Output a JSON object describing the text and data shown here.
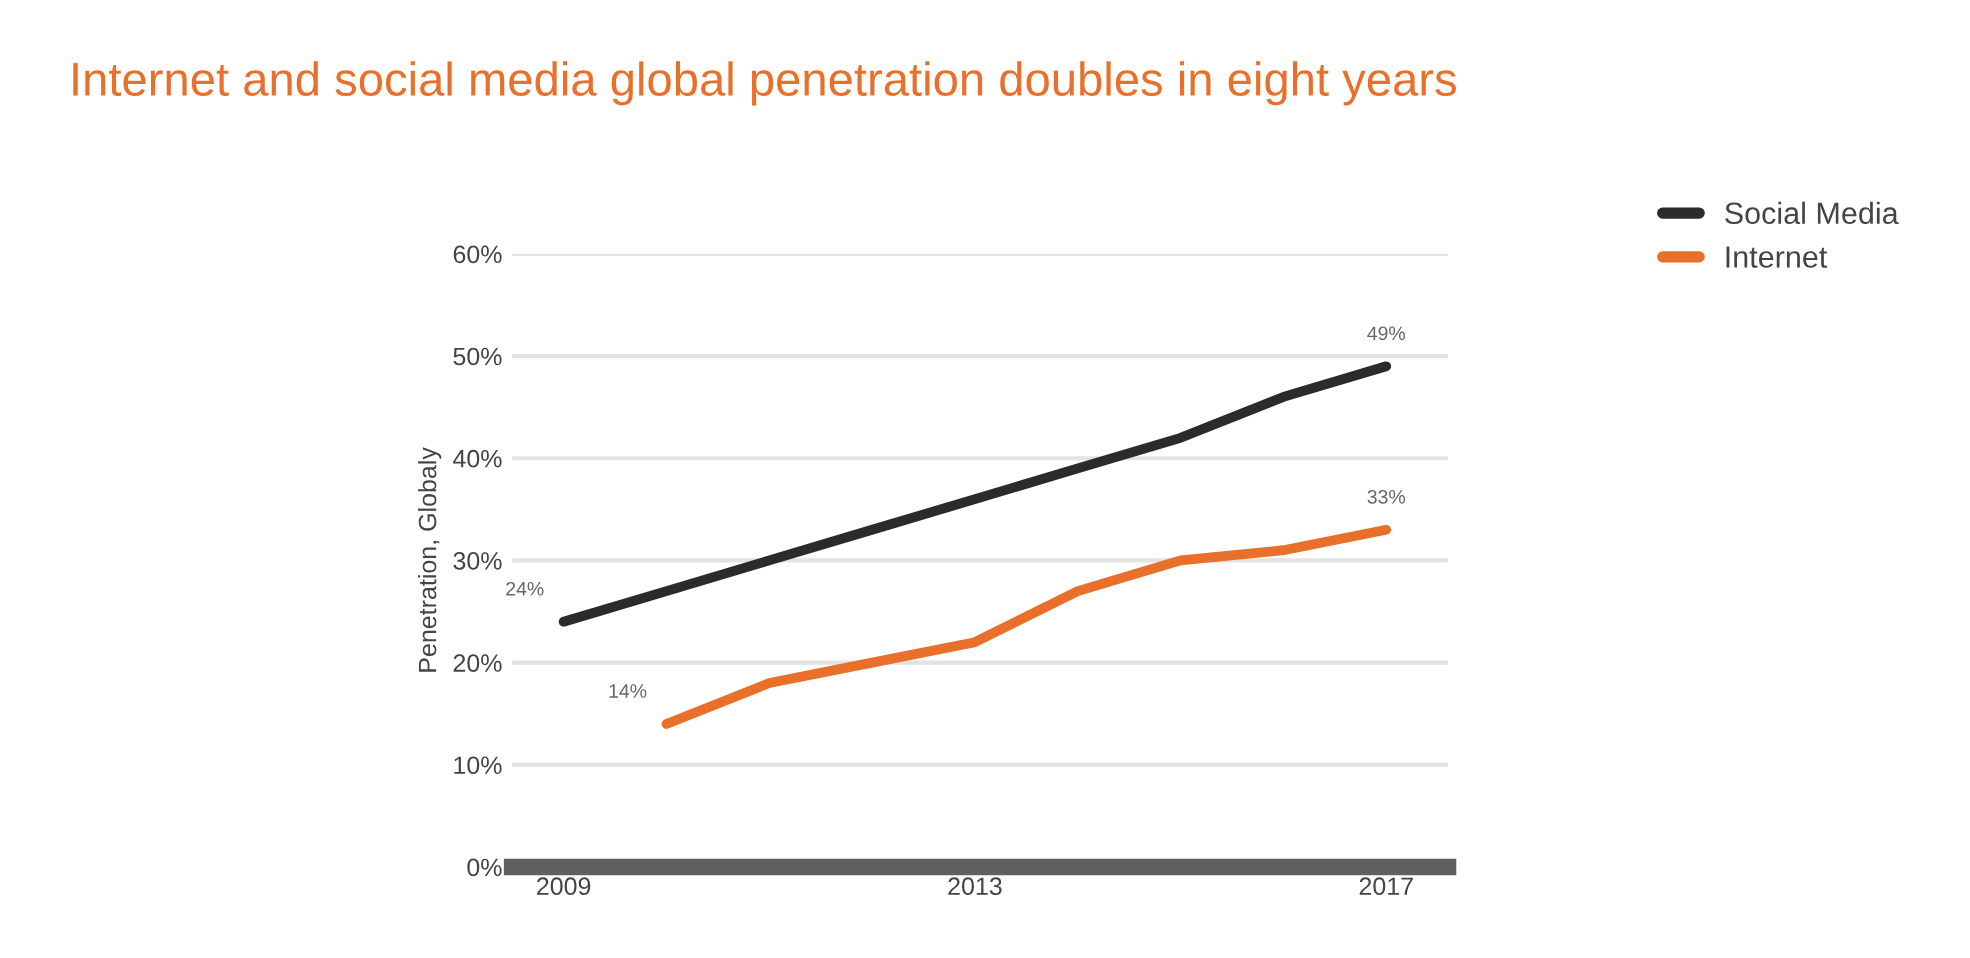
{
  "chart_data": {
    "type": "line",
    "title": "Internet and social media global penetration doubles in eight years",
    "ylabel": "Penetration, Globaly",
    "x": [
      2009,
      2010,
      2011,
      2012,
      2013,
      2014,
      2015,
      2016,
      2017
    ],
    "series": [
      {
        "name": "Social Media",
        "color": "#2b2b2b",
        "values": [
          24,
          27,
          30,
          33,
          36,
          39,
          42,
          46,
          49
        ],
        "value_labels": [
          "24%",
          null,
          null,
          null,
          null,
          null,
          null,
          null,
          "49%"
        ]
      },
      {
        "name": "Internet",
        "color": "#e8702a",
        "values": [
          null,
          14,
          18,
          20,
          22,
          27,
          30,
          31,
          33
        ],
        "value_labels": [
          null,
          "14%",
          null,
          null,
          null,
          null,
          null,
          null,
          "33%"
        ]
      }
    ],
    "xlim": [
      2008.5,
      2017.6
    ],
    "xticks": [
      2009,
      2013,
      2017
    ],
    "ylim": [
      0,
      60
    ],
    "yticks": [
      {
        "value": 0,
        "label": "0%"
      },
      {
        "value": 10,
        "label": "10%"
      },
      {
        "value": 20,
        "label": "20%"
      },
      {
        "value": 30,
        "label": "30%"
      },
      {
        "value": 40,
        "label": "40%"
      },
      {
        "value": 50,
        "label": "50%"
      },
      {
        "value": 60,
        "label": "60%"
      }
    ],
    "grid": "y",
    "legend": "top right",
    "marker": "none",
    "line_style": "solid"
  }
}
